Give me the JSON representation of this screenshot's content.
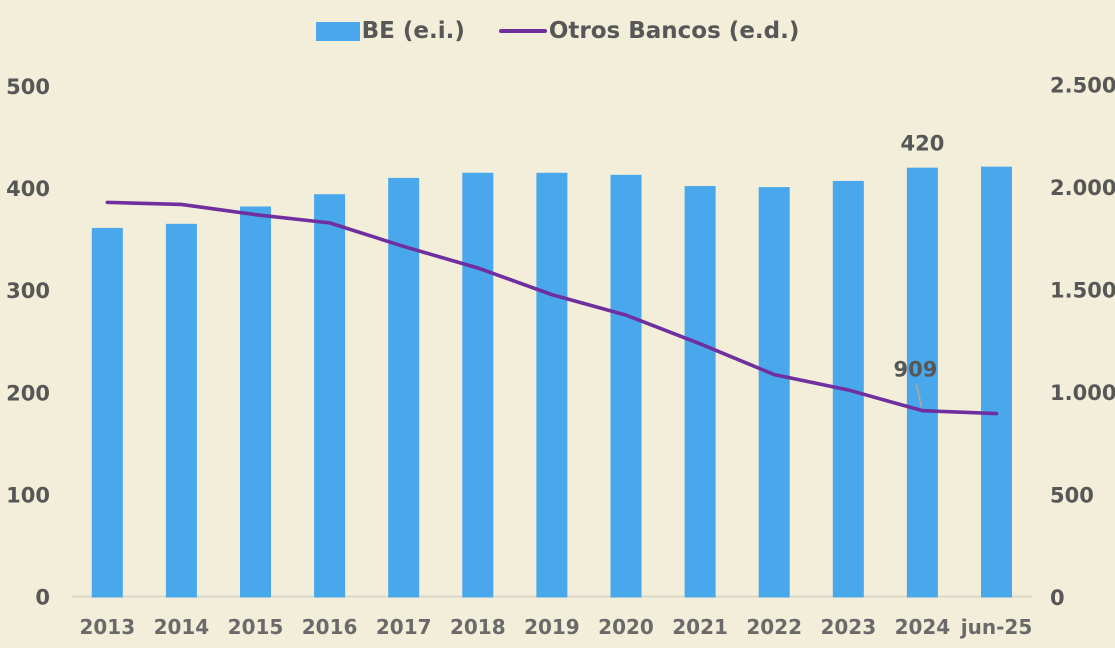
{
  "colors": {
    "background": "#F2EED9",
    "text": "#575757",
    "xlabel_text": "#6A6A6A",
    "axis_line": "#DCD8CA",
    "leader_line": "#A6A6A6",
    "bar": "#49A7EC",
    "line": "#702F9E"
  },
  "chart_data": {
    "type": "combo-bar-line",
    "title": "",
    "categories": [
      "2013",
      "2014",
      "2015",
      "2016",
      "2017",
      "2018",
      "2019",
      "2020",
      "2021",
      "2022",
      "2023",
      "2024",
      "jun-25"
    ],
    "series": [
      {
        "name": "BE (e.i.)",
        "type": "bar",
        "axis": "left",
        "color": "#49A7EC",
        "values": [
          361,
          365,
          382,
          394,
          410,
          415,
          415,
          413,
          402,
          401,
          407,
          420,
          421
        ]
      },
      {
        "name": "Otros Bancos (e.d.)",
        "type": "line",
        "axis": "right",
        "color": "#702F9E",
        "values": [
          1925,
          1915,
          1865,
          1825,
          1710,
          1605,
          1475,
          1375,
          1235,
          1085,
          1010,
          909,
          895
        ]
      }
    ],
    "left_axis": {
      "min": 0,
      "max": 500,
      "tick_values": [
        0,
        100,
        200,
        300,
        400,
        500
      ],
      "tick_labels": [
        "0",
        "100",
        "200",
        "300",
        "400",
        "500"
      ]
    },
    "right_axis": {
      "min": 0,
      "max": 2500,
      "tick_values": [
        0,
        500,
        1000,
        1500,
        2000,
        2500
      ],
      "tick_labels": [
        "0",
        "500",
        "1.000",
        "1.500",
        "2.000",
        "2.500"
      ]
    },
    "data_labels": [
      {
        "series": 0,
        "index": 11,
        "text": "420",
        "leader": false
      },
      {
        "series": 1,
        "index": 11,
        "text": "909",
        "leader": true
      }
    ],
    "legend_position": "top",
    "grid": false
  }
}
